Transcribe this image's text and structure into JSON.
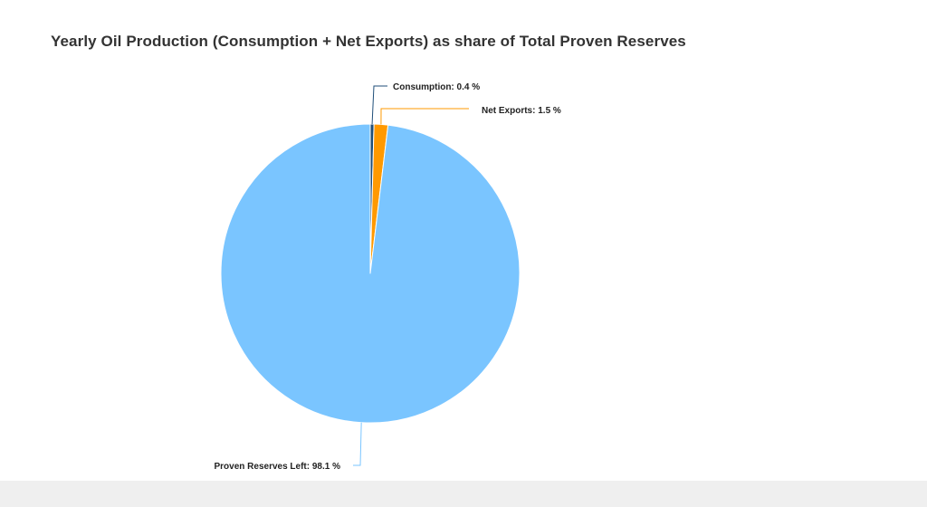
{
  "chart_data": {
    "type": "pie",
    "title": "Yearly Oil Production (Consumption + Net Exports) as share of Total Proven Reserves",
    "slices": [
      {
        "label": "Consumption",
        "value": 0.4,
        "display": "Consumption: 0.4 %",
        "color": "#1f4e79"
      },
      {
        "label": "Net Exports",
        "value": 1.5,
        "display": "Net Exports: 1.5 %",
        "color": "#ff9900"
      },
      {
        "label": "Proven Reserves Left",
        "value": 98.1,
        "display": "Proven Reserves Left: 98.1 %",
        "color": "#7ac5ff"
      }
    ],
    "unit": "%"
  }
}
